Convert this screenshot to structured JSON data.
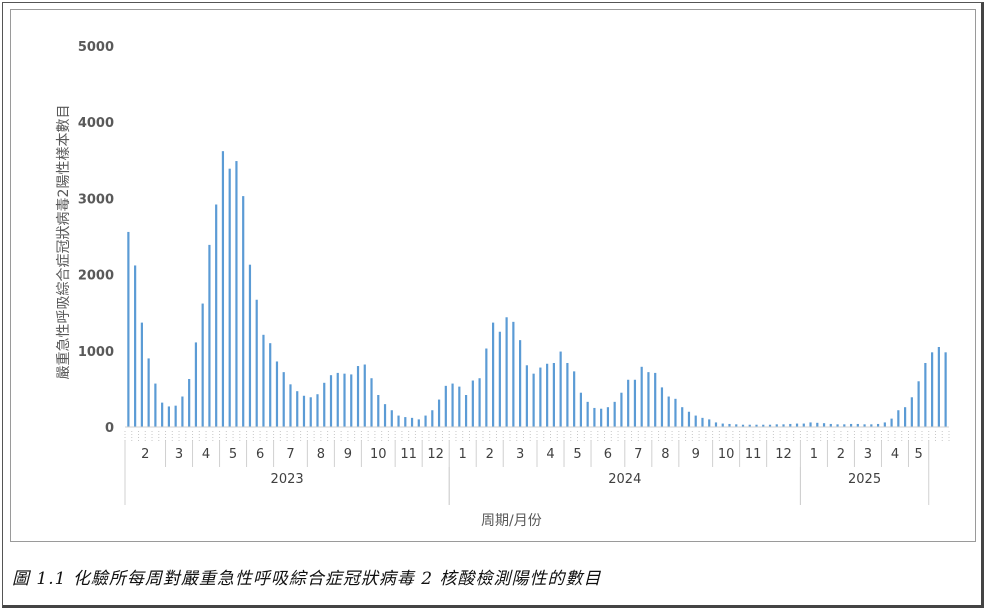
{
  "caption": "圖 1.1  化驗所每周對嚴重急性呼吸綜合症冠狀病毒 2 核酸檢測陽性的數目",
  "chart_data": {
    "type": "bar",
    "ylabel": "嚴重急性呼吸綜合症冠狀病毒2陽性樣本數目",
    "xlabel": "周期/月份",
    "ylim": [
      0,
      5000
    ],
    "yticks": [
      0,
      1000,
      2000,
      3000,
      4000,
      5000
    ],
    "grid": false,
    "bar_color": "#5b9bd5",
    "values": [
      2560,
      2120,
      1370,
      900,
      570,
      320,
      270,
      280,
      400,
      630,
      1110,
      1620,
      2390,
      2920,
      3620,
      3390,
      3490,
      3030,
      2130,
      1670,
      1210,
      1100,
      860,
      720,
      560,
      470,
      410,
      390,
      430,
      580,
      680,
      710,
      700,
      690,
      800,
      820,
      640,
      420,
      300,
      220,
      150,
      130,
      120,
      100,
      150,
      220,
      360,
      540,
      570,
      530,
      420,
      610,
      640,
      1030,
      1370,
      1250,
      1440,
      1380,
      1140,
      810,
      700,
      780,
      830,
      840,
      990,
      840,
      730,
      450,
      330,
      250,
      240,
      260,
      330,
      450,
      620,
      620,
      790,
      720,
      710,
      520,
      400,
      370,
      260,
      200,
      150,
      120,
      100,
      60,
      45,
      40,
      35,
      30,
      30,
      30,
      30,
      30,
      35,
      35,
      40,
      45,
      45,
      60,
      55,
      50,
      40,
      35,
      35,
      40,
      40,
      35,
      35,
      40,
      60,
      110,
      220,
      260,
      390,
      600,
      840,
      980,
      1050,
      980
    ],
    "month_labels": [
      {
        "label": "2",
        "start": 0,
        "end": 5
      },
      {
        "label": "3",
        "start": 6,
        "end": 9
      },
      {
        "label": "4",
        "start": 10,
        "end": 13
      },
      {
        "label": "5",
        "start": 14,
        "end": 17
      },
      {
        "label": "6",
        "start": 18,
        "end": 21
      },
      {
        "label": "7",
        "start": 22,
        "end": 26
      },
      {
        "label": "8",
        "start": 27,
        "end": 30
      },
      {
        "label": "9",
        "start": 31,
        "end": 34
      },
      {
        "label": "10",
        "start": 35,
        "end": 39
      },
      {
        "label": "11",
        "start": 40,
        "end": 43
      },
      {
        "label": "12",
        "start": 44,
        "end": 47
      },
      {
        "label": "1",
        "start": 48,
        "end": 51
      },
      {
        "label": "2",
        "start": 52,
        "end": 55
      },
      {
        "label": "3",
        "start": 56,
        "end": 60
      },
      {
        "label": "4",
        "start": 61,
        "end": 64
      },
      {
        "label": "5",
        "start": 65,
        "end": 68
      },
      {
        "label": "6",
        "start": 69,
        "end": 73
      },
      {
        "label": "7",
        "start": 74,
        "end": 77
      },
      {
        "label": "8",
        "start": 78,
        "end": 81
      },
      {
        "label": "9",
        "start": 82,
        "end": 86
      },
      {
        "label": "10",
        "start": 87,
        "end": 90
      },
      {
        "label": "11",
        "start": 91,
        "end": 94
      },
      {
        "label": "12",
        "start": 95,
        "end": 99
      },
      {
        "label": "1",
        "start": 100,
        "end": 103
      },
      {
        "label": "2",
        "start": 104,
        "end": 107
      },
      {
        "label": "3",
        "start": 108,
        "end": 111
      },
      {
        "label": "4",
        "start": 112,
        "end": 115
      },
      {
        "label": "5",
        "start": 116,
        "end": 118
      }
    ],
    "year_labels": [
      {
        "label": "2023",
        "start": 0,
        "end": 47
      },
      {
        "label": "2024",
        "start": 48,
        "end": 99
      },
      {
        "label": "2025",
        "start": 100,
        "end": 118
      }
    ]
  }
}
